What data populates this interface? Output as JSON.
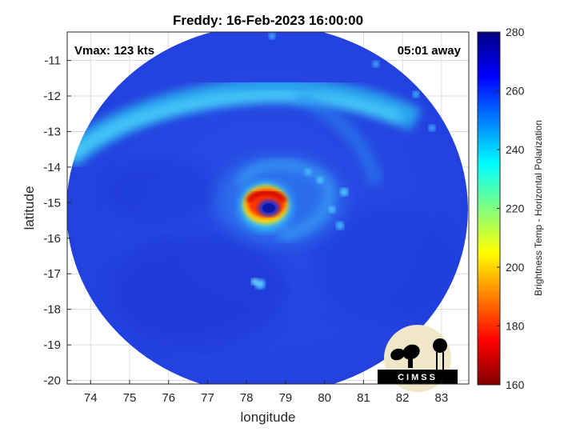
{
  "title": "Freddy: 16-Feb-2023 16:00:00",
  "overlay": {
    "vmax": "Vmax: 123 kts",
    "time_away": "05:01 away"
  },
  "axes": {
    "xlabel": "longitude",
    "ylabel": "latitude",
    "xlim": [
      73.4,
      83.7
    ],
    "ylim": [
      -20.1,
      -10.2
    ],
    "xticks": [
      "74",
      "75",
      "76",
      "77",
      "78",
      "79",
      "80",
      "81",
      "82",
      "83"
    ],
    "yticks": [
      "-11",
      "-12",
      "-13",
      "-14",
      "-15",
      "-16",
      "-17",
      "-18",
      "-19",
      "-20"
    ],
    "grid": true
  },
  "colorbar": {
    "label": "Brightness Temp - Horizontal Polarization",
    "range": [
      160,
      280
    ],
    "ticks": [
      "280",
      "260",
      "240",
      "220",
      "200",
      "180",
      "160"
    ],
    "colormap": "jet"
  },
  "storm": {
    "eye_lon": 78.6,
    "eye_lat": -15.2,
    "coldest_ring_bt": 175,
    "eye_bt": 245,
    "background_bt": 265
  },
  "logo": {
    "text": "CIMSS",
    "icon": "satellite-dish-watertower-icon"
  },
  "colors": {
    "background": "#ffffff",
    "frame": "#262626",
    "grid": "#dcdcdc"
  }
}
